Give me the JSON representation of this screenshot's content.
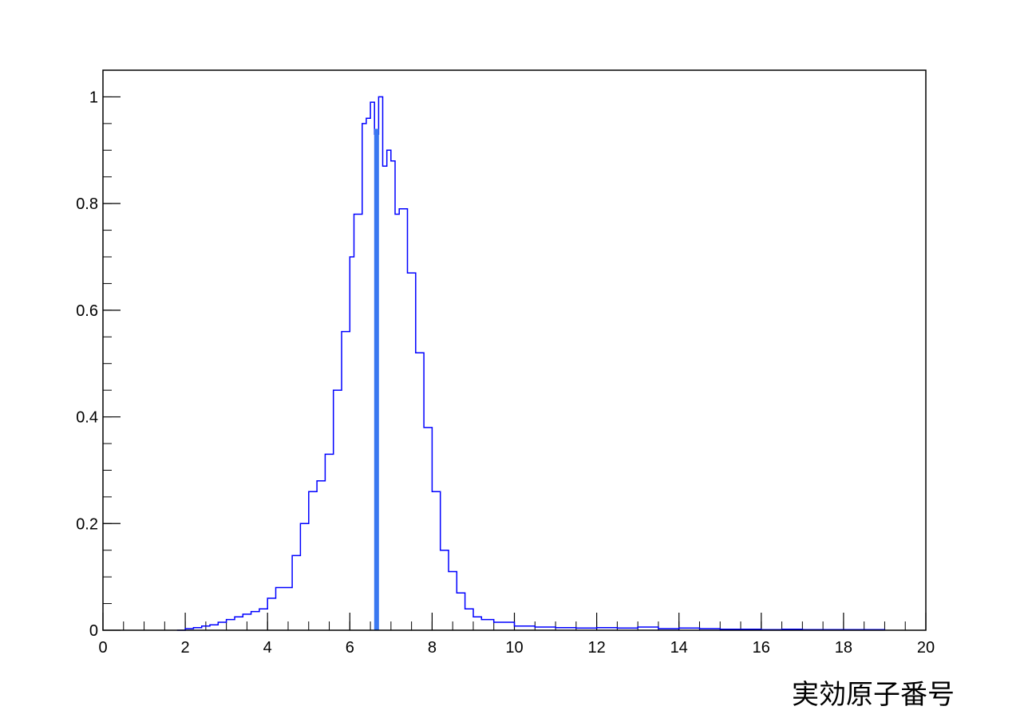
{
  "chart_data": {
    "type": "line",
    "title": "",
    "xlabel": "実効原子番号",
    "ylabel": "",
    "xlim": [
      0,
      20
    ],
    "ylim": [
      0,
      1.05
    ],
    "x_ticks": [
      "0",
      "2",
      "4",
      "6",
      "8",
      "10",
      "12",
      "14",
      "16",
      "18",
      "20"
    ],
    "y_ticks": [
      "0",
      "0.2",
      "0.4",
      "0.6",
      "0.8",
      "1"
    ],
    "grid": false,
    "series": [
      {
        "color": "#0000ff",
        "x": [
          1.8,
          2.0,
          2.2,
          2.4,
          2.6,
          2.8,
          3.0,
          3.2,
          3.4,
          3.6,
          3.8,
          4.0,
          4.2,
          4.4,
          4.6,
          4.8,
          5.0,
          5.2,
          5.4,
          5.6,
          5.8,
          6.0,
          6.1,
          6.2,
          6.3,
          6.4,
          6.5,
          6.6,
          6.7,
          6.8,
          6.9,
          7.0,
          7.1,
          7.2,
          7.4,
          7.6,
          7.8,
          8.0,
          8.2,
          8.4,
          8.6,
          8.8,
          9.0,
          9.2,
          9.5,
          10.0,
          10.5,
          11.0,
          11.5,
          12.0,
          12.5,
          13.0,
          13.5,
          14.0,
          14.5,
          15.0,
          15.5,
          16.0,
          16.5,
          17.0,
          17.5,
          18.0,
          18.5,
          19.0
        ],
        "y": [
          0.0,
          0.003,
          0.005,
          0.008,
          0.01,
          0.015,
          0.02,
          0.025,
          0.03,
          0.035,
          0.04,
          0.06,
          0.08,
          0.08,
          0.14,
          0.2,
          0.26,
          0.28,
          0.33,
          0.45,
          0.56,
          0.7,
          0.78,
          0.78,
          0.95,
          0.96,
          0.99,
          0.93,
          1.0,
          0.87,
          0.9,
          0.88,
          0.78,
          0.79,
          0.67,
          0.52,
          0.38,
          0.26,
          0.15,
          0.11,
          0.07,
          0.04,
          0.025,
          0.02,
          0.015,
          0.008,
          0.006,
          0.005,
          0.004,
          0.005,
          0.004,
          0.006,
          0.003,
          0.004,
          0.003,
          0.002,
          0.002,
          0.001,
          0.002,
          0.001,
          0.001,
          0.001,
          0.001,
          0.0
        ]
      }
    ],
    "marker_line": {
      "x": 6.65,
      "color": "#3a78f0"
    }
  }
}
